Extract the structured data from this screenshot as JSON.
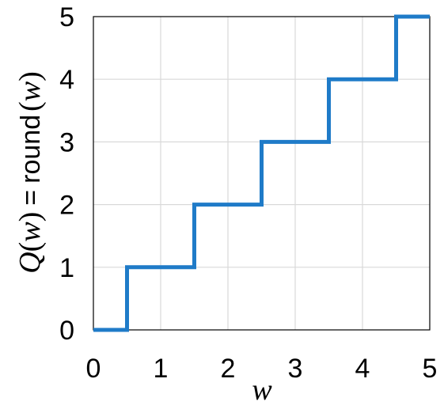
{
  "chart_data": {
    "type": "line",
    "step": true,
    "x": [
      0,
      0.5,
      0.5,
      1.5,
      1.5,
      2.5,
      2.5,
      3.5,
      3.5,
      4.5,
      4.5,
      5
    ],
    "series": [
      {
        "values": [
          0,
          0,
          1,
          1,
          2,
          2,
          3,
          3,
          4,
          4,
          5,
          5
        ],
        "color": "#1f7bc8"
      }
    ],
    "xlim": [
      0,
      5
    ],
    "ylim": [
      0,
      5
    ],
    "xticks": [
      "0",
      "1",
      "2",
      "3",
      "4",
      "5"
    ],
    "yticks": [
      "0",
      "1",
      "2",
      "3",
      "4",
      "5"
    ],
    "grid": true,
    "xlabel": "w",
    "ylabel": {
      "func": "Q",
      "lparen": "(",
      "var": "w",
      "rparen": ")",
      "equals": "=",
      "op": "round",
      "lparen2": "(",
      "var2": "w",
      "rparen2": ")"
    },
    "colors": {
      "line": "#1f7bc8",
      "grid": "#d9d9d9",
      "frame": "#000000"
    }
  }
}
